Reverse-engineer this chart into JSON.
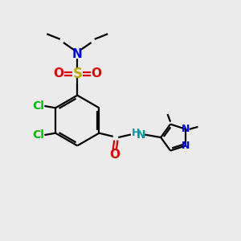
{
  "bg_color": "#ebebeb",
  "bond_color": "#000000",
  "cl_color": "#00bb00",
  "n_color": "#0000ee",
  "o_color": "#dd0000",
  "s_color": "#bbaa00",
  "nh_color": "#009999",
  "figsize": [
    3.0,
    3.0
  ],
  "dpi": 100,
  "xlim": [
    0,
    10
  ],
  "ylim": [
    0,
    10
  ]
}
